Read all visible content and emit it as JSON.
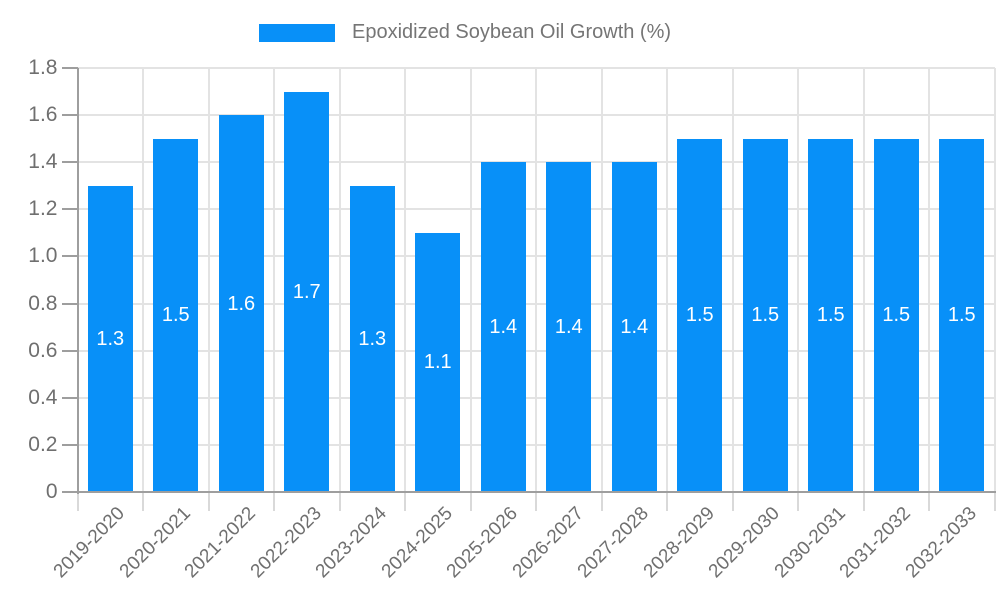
{
  "legend": {
    "label": "Epoxidized Soybean Oil Growth (%)"
  },
  "chart_data": {
    "type": "bar",
    "title": "Epoxidized Soybean Oil Growth (%)",
    "series_name": "Epoxidized Soybean Oil Growth (%)",
    "categories": [
      "2019-2020",
      "2020-2021",
      "2021-2022",
      "2022-2023",
      "2023-2024",
      "2024-2025",
      "2025-2026",
      "2026-2027",
      "2027-2028",
      "2028-2029",
      "2029-2030",
      "2030-2031",
      "2031-2032",
      "2032-2033"
    ],
    "values": [
      1.3,
      1.5,
      1.6,
      1.7,
      1.3,
      1.1,
      1.4,
      1.4,
      1.4,
      1.5,
      1.5,
      1.5,
      1.5,
      1.5
    ],
    "value_labels": [
      "1.3",
      "1.5",
      "1.6",
      "1.7",
      "1.3",
      "1.1",
      "1.4",
      "1.4",
      "1.4",
      "1.5",
      "1.5",
      "1.5",
      "1.5",
      "1.5"
    ],
    "xlabel": "",
    "ylabel": "",
    "ylim": [
      0,
      1.8
    ],
    "yticks": [
      "0",
      "0.2",
      "0.4",
      "0.6",
      "0.8",
      "1.0",
      "1.2",
      "1.4",
      "1.6",
      "1.8"
    ],
    "grid": true,
    "legend_position": "top",
    "colors": {
      "bar": "#0890f8",
      "value_label": "#ffffff",
      "axis": "#9e9e9e",
      "grid": "#e3e3e3",
      "bottom_tick": "#d9d9d9",
      "tick_label": "#6f6f6f",
      "legend_text": "#757575"
    }
  }
}
